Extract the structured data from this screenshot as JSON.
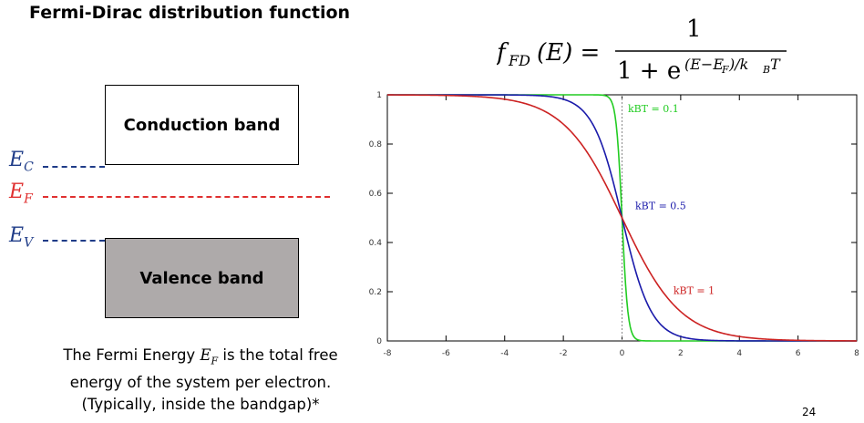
{
  "title": "Fermi-Dirac distribution function",
  "formula": {
    "lhs_f": "f",
    "lhs_sub": "FD",
    "lhs_arg": "(E) =",
    "numerator": "1",
    "denominator": "1 + e",
    "exponent": "(E−E",
    "exponent_sub": "F",
    "exponent_tail": ")/k",
    "exponent_sub2": "B",
    "exponent_end": "T"
  },
  "diagram": {
    "conduction_band": "Conduction band",
    "valence_band": "Valence band",
    "ec_symbol": "E",
    "ec_sub": "C",
    "ef_symbol": "E",
    "ef_sub": "F",
    "ev_symbol": "E",
    "ev_sub": "V",
    "colors": {
      "ec": "#1f3c88",
      "ef": "#e03030",
      "ev": "#1f3c88"
    }
  },
  "caption": {
    "line1_a": "The Fermi Energy ",
    "line1_sym": "E",
    "line1_sub": "F",
    "line1_b": " is the total free",
    "line2": "energy of the system per electron.",
    "line3": "(Typically, inside the bandgap)*"
  },
  "page_number": "24",
  "chart_data": {
    "type": "line",
    "title": "",
    "xlabel": "",
    "ylabel": "",
    "xlim": [
      -8,
      8
    ],
    "ylim": [
      0,
      1
    ],
    "x_ticks": [
      -8,
      -6,
      -4,
      -2,
      0,
      2,
      4,
      6,
      8
    ],
    "y_ticks": [
      0,
      0.2,
      0.4,
      0.6,
      0.8,
      1
    ],
    "function": "1/(1+exp(x/kT))",
    "series": [
      {
        "name": "kBT = 0.1",
        "kT": 0.1,
        "color": "#22cc22",
        "label_x": 0.2,
        "label_y": 0.93
      },
      {
        "name": "kBT = 0.5",
        "kT": 0.5,
        "color": "#1a1aaa",
        "label_x": 0.45,
        "label_y": 0.535
      },
      {
        "name": "kBT = 1",
        "kT": 1,
        "color": "#cc2222",
        "label_x": 1.75,
        "label_y": 0.19
      }
    ],
    "vline_x": 0,
    "grid": false
  }
}
